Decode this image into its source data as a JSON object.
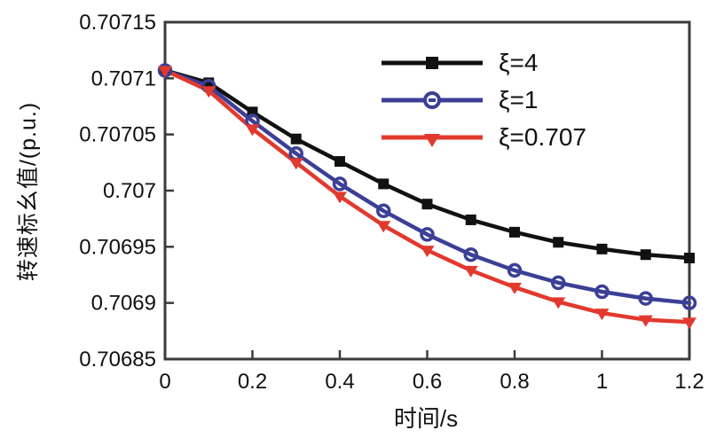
{
  "chart_data": {
    "type": "line",
    "title": "",
    "xlabel": "时间/s",
    "ylabel": "转速标幺值/(p.u.)",
    "xlim": [
      0,
      1.2
    ],
    "ylim": [
      0.70685,
      0.70715
    ],
    "grid": false,
    "legend_position": "top-right",
    "axis_color": "#3b3b3b",
    "x_ticks": [
      0,
      0.2,
      0.4,
      0.6,
      0.8,
      1,
      1.2
    ],
    "x_tick_labels": [
      "0",
      "0.2",
      "0.4",
      "0.6",
      "0.8",
      "1",
      "1.2"
    ],
    "y_ticks": [
      0.70685,
      0.7069,
      0.70695,
      0.707,
      0.70705,
      0.7071,
      0.70715
    ],
    "y_tick_labels": [
      "0.70685",
      "0.7069",
      "0.70695",
      "0.707",
      "0.70705",
      "0.7071",
      "0.70715"
    ],
    "x": [
      0,
      0.1,
      0.2,
      0.3,
      0.4,
      0.5,
      0.6,
      0.7,
      0.8,
      0.9,
      1.0,
      1.1,
      1.2
    ],
    "series": [
      {
        "name": "ξ=4",
        "color": "#111111",
        "marker": "square",
        "values": [
          0.707107,
          0.707096,
          0.70707,
          0.707046,
          0.707026,
          0.707006,
          0.706988,
          0.706974,
          0.706963,
          0.706954,
          0.706948,
          0.706943,
          0.70694
        ]
      },
      {
        "name": "ξ=1",
        "color": "#3c3f96",
        "marker": "circle-open",
        "values": [
          0.707107,
          0.707093,
          0.707062,
          0.707033,
          0.707006,
          0.706982,
          0.706961,
          0.706943,
          0.706929,
          0.706918,
          0.70691,
          0.706904,
          0.7069
        ]
      },
      {
        "name": "ξ=0.707",
        "color": "#e2392e",
        "marker": "triangle-down",
        "values": [
          0.707107,
          0.707089,
          0.707055,
          0.707025,
          0.706995,
          0.706969,
          0.706947,
          0.706929,
          0.706914,
          0.706901,
          0.706891,
          0.706885,
          0.706883
        ]
      }
    ]
  }
}
